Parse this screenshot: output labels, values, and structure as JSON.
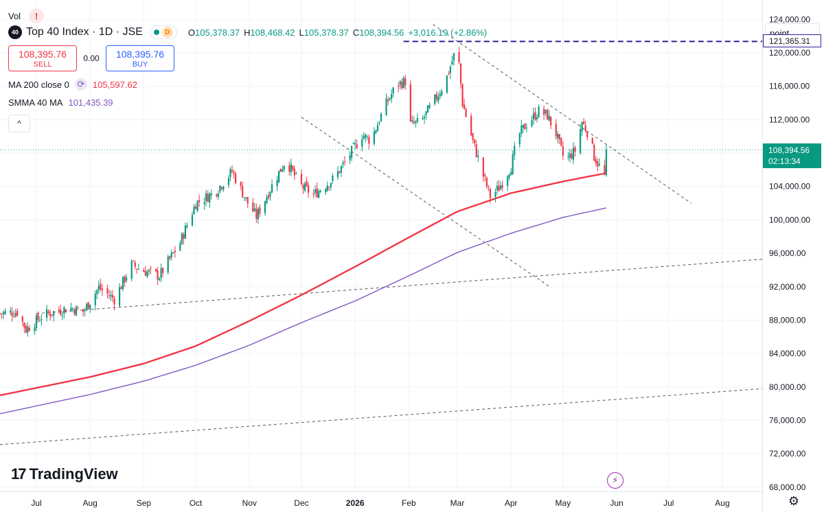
{
  "legend": {
    "vol_label": "Vol",
    "warning_mark": "!",
    "symbol_logo": "40",
    "symbol_title": "Top 40 Index · 1D · JSE",
    "delay_badge": "D",
    "ohlc": {
      "o_label": "O",
      "o_value": "105,378.37",
      "h_label": "H",
      "h_value": "108,468.42",
      "l_label": "L",
      "l_value": "105,378.37",
      "c_label": "C",
      "c_value": "108,394.56",
      "change": "+3,016.19 (+2.86%)"
    },
    "sell_price": "108,395.76",
    "sell_label": "SELL",
    "spread": "0.00",
    "buy_price": "108,395.76",
    "buy_label": "BUY",
    "ma_name": "MA 200 close 0",
    "ma_value": "105,597.62",
    "smma_name": "SMMA 40 MA",
    "smma_value": "101,435.39",
    "collapse_glyph": "^"
  },
  "price_axis": {
    "mode_label": "point",
    "alert_price": "121,365.31",
    "last_price": "108,394.56",
    "countdown": "02:13:34"
  },
  "branding": {
    "logo_text": "TradingView",
    "logo_mark": "17"
  },
  "colors": {
    "up": "#089981",
    "down": "#f23645",
    "ma200": "#f23645",
    "smma40": "#7e57c2",
    "alert_line": "#311b92",
    "trendline": "#555555",
    "grid": "#f0f3fa",
    "last_price_line": "#089981"
  },
  "chart_data": {
    "type": "candlestick",
    "title": "Top 40 Index · 1D · JSE",
    "y_ticks": [
      124000,
      120000,
      116000,
      112000,
      108000,
      104000,
      100000,
      96000,
      92000,
      88000,
      84000,
      80000,
      76000,
      72000,
      68000
    ],
    "y_tick_labels": [
      "124,000.00",
      "120,000.00",
      "116,000.00",
      "112,000.00",
      "108,000.00",
      "104,000.00",
      "100,000.00",
      "96,000.00",
      "92,000.00",
      "88,000.00",
      "84,000.00",
      "80,000.00",
      "76,000.00",
      "72,000.00",
      "68,000.00"
    ],
    "ylim": [
      67500,
      125500
    ],
    "x_tick_labels": [
      "Jul",
      "Aug",
      "Sep",
      "Oct",
      "Nov",
      "Dec",
      "2026",
      "Feb",
      "Mar",
      "Apr",
      "May",
      "Jun",
      "Jul",
      "Aug"
    ],
    "x_tick_dates": [
      "2025-07-01",
      "2025-08-01",
      "2025-09-01",
      "2025-10-01",
      "2025-11-01",
      "2025-12-01",
      "2026-01-01",
      "2026-02-01",
      "2026-03-01",
      "2026-04-01",
      "2026-05-01",
      "2026-06-01",
      "2026-07-01",
      "2026-08-01"
    ],
    "xlim": [
      "2025-06-10",
      "2026-08-24"
    ],
    "price_path": [
      [
        "2025-06-10",
        88800
      ],
      [
        "2025-06-20",
        89000
      ],
      [
        "2025-06-25",
        86900
      ],
      [
        "2025-07-05",
        88600
      ],
      [
        "2025-07-20",
        89500
      ],
      [
        "2025-07-28",
        89000
      ],
      [
        "2025-08-06",
        91900
      ],
      [
        "2025-08-15",
        90500
      ],
      [
        "2025-08-25",
        94600
      ],
      [
        "2025-09-01",
        93900
      ],
      [
        "2025-09-10",
        93300
      ],
      [
        "2025-09-22",
        97300
      ],
      [
        "2025-10-01",
        102000
      ],
      [
        "2025-10-12",
        103300
      ],
      [
        "2025-10-22",
        105800
      ],
      [
        "2025-10-30",
        102400
      ],
      [
        "2025-11-05",
        100400
      ],
      [
        "2025-11-15",
        104500
      ],
      [
        "2025-11-22",
        107200
      ],
      [
        "2025-11-30",
        104200
      ],
      [
        "2025-12-08",
        103000
      ],
      [
        "2025-12-20",
        105000
      ],
      [
        "2026-01-01",
        108800
      ],
      [
        "2026-01-05",
        110200
      ],
      [
        "2026-01-10",
        109500
      ],
      [
        "2026-01-18",
        113500
      ],
      [
        "2026-01-25",
        116200
      ],
      [
        "2026-01-30",
        116600
      ],
      [
        "2026-02-02",
        111400
      ],
      [
        "2026-02-08",
        111700
      ],
      [
        "2026-02-15",
        114000
      ],
      [
        "2026-02-22",
        116500
      ],
      [
        "2026-02-28",
        120300
      ],
      [
        "2026-03-02",
        118600
      ],
      [
        "2026-03-04",
        114000
      ],
      [
        "2026-03-10",
        109400
      ],
      [
        "2026-03-16",
        105300
      ],
      [
        "2026-03-20",
        102800
      ],
      [
        "2026-03-25",
        103800
      ],
      [
        "2026-04-01",
        106400
      ],
      [
        "2026-04-05",
        110000
      ],
      [
        "2026-04-10",
        111500
      ],
      [
        "2026-04-17",
        113000
      ],
      [
        "2026-04-22",
        112500
      ],
      [
        "2026-04-27",
        110300
      ],
      [
        "2026-05-02",
        107000
      ],
      [
        "2026-05-08",
        108300
      ],
      [
        "2026-05-12",
        111700
      ],
      [
        "2026-05-16",
        110200
      ],
      [
        "2026-05-19",
        107600
      ],
      [
        "2026-05-22",
        106400
      ],
      [
        "2026-05-25",
        105400
      ],
      [
        "2026-05-26",
        108394.56
      ]
    ],
    "ma200": [
      [
        "2025-06-10",
        79000
      ],
      [
        "2025-08-01",
        81200
      ],
      [
        "2025-09-01",
        82800
      ],
      [
        "2025-10-01",
        84900
      ],
      [
        "2025-11-01",
        87900
      ],
      [
        "2025-12-01",
        91000
      ],
      [
        "2026-01-01",
        94400
      ],
      [
        "2026-02-01",
        97900
      ],
      [
        "2026-03-01",
        101000
      ],
      [
        "2026-04-01",
        103200
      ],
      [
        "2026-05-01",
        104600
      ],
      [
        "2026-05-26",
        105597.62
      ]
    ],
    "smma40": [
      [
        "2025-06-10",
        76800
      ],
      [
        "2025-08-01",
        79100
      ],
      [
        "2025-09-01",
        80700
      ],
      [
        "2025-10-01",
        82600
      ],
      [
        "2025-11-01",
        85000
      ],
      [
        "2025-12-01",
        87700
      ],
      [
        "2026-01-01",
        90300
      ],
      [
        "2026-02-01",
        93300
      ],
      [
        "2026-03-01",
        96100
      ],
      [
        "2026-04-01",
        98400
      ],
      [
        "2026-05-01",
        100300
      ],
      [
        "2026-05-26",
        101435.39
      ]
    ],
    "alert_level": 121365.31,
    "alert_line_start": "2026-01-29",
    "trendlines": [
      [
        [
          "2025-07-01",
          88800
        ],
        [
          "2026-08-24",
          95300
        ]
      ],
      [
        [
          "2025-06-10",
          73100
        ],
        [
          "2026-08-24",
          79800
        ]
      ],
      [
        [
          "2025-12-01",
          112300
        ],
        [
          "2026-04-24",
          91900
        ]
      ],
      [
        [
          "2026-02-15",
          123400
        ],
        [
          "2026-07-14",
          102000
        ]
      ]
    ],
    "last_price": 108394.56
  }
}
